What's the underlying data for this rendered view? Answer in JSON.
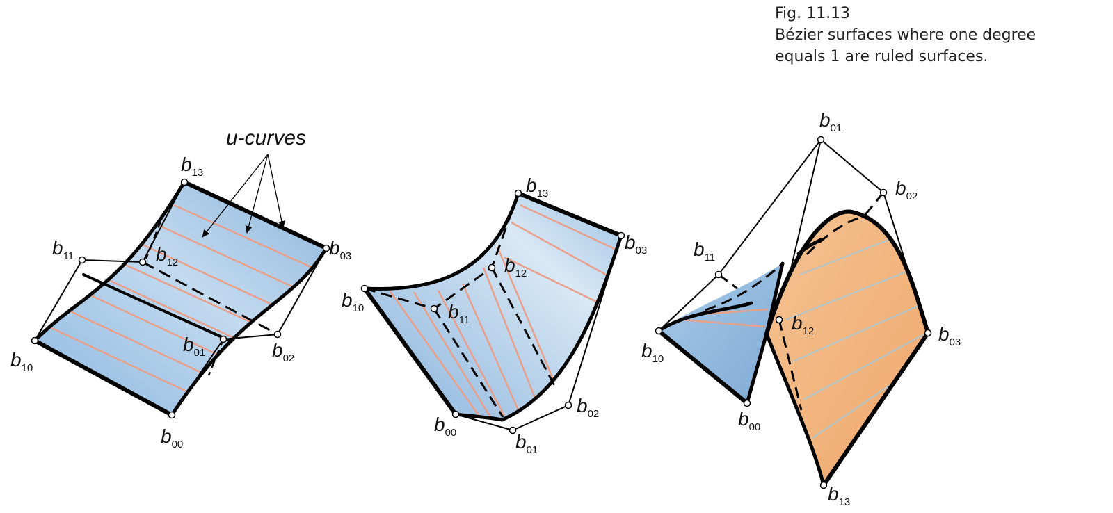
{
  "caption": {
    "fig_number": "Fig. 11.13",
    "line1": "Bézier surfaces where one degree",
    "line2": "equals 1 are ruled surfaces."
  },
  "annotation": {
    "u_curves": "u-curves"
  },
  "colors": {
    "surface_blue": "#9fc3e4",
    "surface_orange": "#f2b47e",
    "rulings_on_blue": "#e8a08a",
    "rulings_on_orange": "#b9c4c0",
    "outline": "#000000"
  },
  "figures": [
    {
      "name": "left",
      "points": [
        {
          "base": "b",
          "sub": "13"
        },
        {
          "base": "b",
          "sub": "11"
        },
        {
          "base": "b",
          "sub": "12"
        },
        {
          "base": "b",
          "sub": "03"
        },
        {
          "base": "b",
          "sub": "10"
        },
        {
          "base": "b",
          "sub": "01"
        },
        {
          "base": "b",
          "sub": "02"
        },
        {
          "base": "b",
          "sub": "00"
        }
      ]
    },
    {
      "name": "middle",
      "points": [
        {
          "base": "b",
          "sub": "13"
        },
        {
          "base": "b",
          "sub": "03"
        },
        {
          "base": "b",
          "sub": "12"
        },
        {
          "base": "b",
          "sub": "10"
        },
        {
          "base": "b",
          "sub": "11"
        },
        {
          "base": "b",
          "sub": "02"
        },
        {
          "base": "b",
          "sub": "00"
        },
        {
          "base": "b",
          "sub": "01"
        }
      ]
    },
    {
      "name": "right",
      "points": [
        {
          "base": "b",
          "sub": "01"
        },
        {
          "base": "b",
          "sub": "02"
        },
        {
          "base": "b",
          "sub": "11"
        },
        {
          "base": "b",
          "sub": "12"
        },
        {
          "base": "b",
          "sub": "10"
        },
        {
          "base": "b",
          "sub": "03"
        },
        {
          "base": "b",
          "sub": "00"
        },
        {
          "base": "b",
          "sub": "13"
        }
      ]
    }
  ]
}
